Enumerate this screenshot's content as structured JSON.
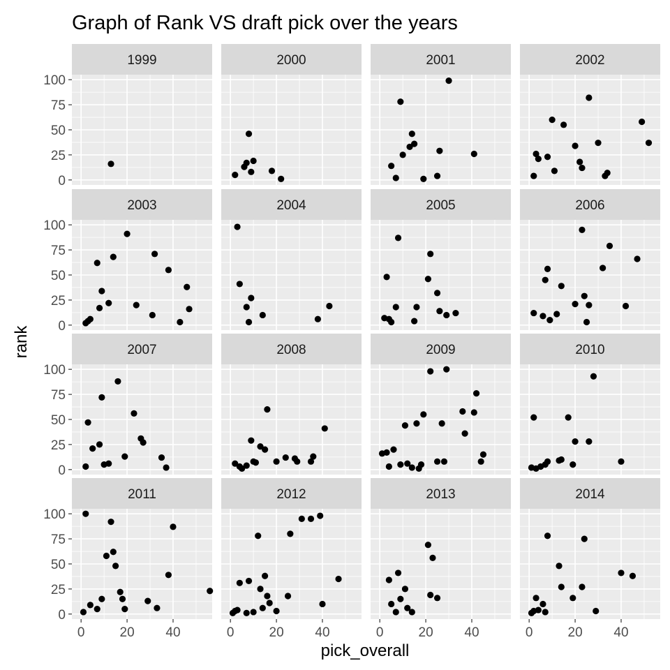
{
  "chart_data": {
    "type": "scatter",
    "title": "Graph of Rank VS draft pick over the years",
    "xlabel": "pick_overall",
    "ylabel": "rank",
    "xlim": [
      -4,
      57
    ],
    "ylim": [
      -5,
      105
    ],
    "x_ticks": [
      0,
      20,
      40
    ],
    "y_ticks": [
      0,
      25,
      50,
      75,
      100
    ],
    "grid": true,
    "facets": [
      {
        "label": "1999",
        "points": [
          [
            13,
            16
          ]
        ]
      },
      {
        "label": "2000",
        "points": [
          [
            2,
            5
          ],
          [
            6,
            13
          ],
          [
            7,
            17
          ],
          [
            8,
            46
          ],
          [
            9,
            8
          ],
          [
            10,
            19
          ],
          [
            18,
            9
          ],
          [
            22,
            1
          ]
        ]
      },
      {
        "label": "2001",
        "points": [
          [
            5,
            14
          ],
          [
            7,
            2
          ],
          [
            9,
            78
          ],
          [
            10,
            25
          ],
          [
            13,
            33
          ],
          [
            14,
            46
          ],
          [
            15,
            36
          ],
          [
            19,
            1
          ],
          [
            25,
            4
          ],
          [
            26,
            29
          ],
          [
            30,
            99
          ],
          [
            41,
            26
          ]
        ]
      },
      {
        "label": "2002",
        "points": [
          [
            2,
            4
          ],
          [
            3,
            26
          ],
          [
            4,
            21
          ],
          [
            8,
            23
          ],
          [
            10,
            60
          ],
          [
            11,
            9
          ],
          [
            15,
            55
          ],
          [
            20,
            34
          ],
          [
            22,
            18
          ],
          [
            23,
            12
          ],
          [
            26,
            82
          ],
          [
            30,
            37
          ],
          [
            33,
            4
          ],
          [
            34,
            7
          ],
          [
            49,
            58
          ],
          [
            52,
            37
          ]
        ]
      },
      {
        "label": "2003",
        "points": [
          [
            2,
            2
          ],
          [
            3,
            4
          ],
          [
            4,
            6
          ],
          [
            7,
            62
          ],
          [
            8,
            17
          ],
          [
            9,
            34
          ],
          [
            12,
            22
          ],
          [
            14,
            68
          ],
          [
            20,
            91
          ],
          [
            24,
            20
          ],
          [
            31,
            10
          ],
          [
            32,
            71
          ],
          [
            38,
            55
          ],
          [
            43,
            3
          ],
          [
            46,
            38
          ],
          [
            47,
            16
          ]
        ]
      },
      {
        "label": "2004",
        "points": [
          [
            3,
            98
          ],
          [
            4,
            41
          ],
          [
            7,
            18
          ],
          [
            8,
            3
          ],
          [
            9,
            27
          ],
          [
            14,
            10
          ],
          [
            38,
            6
          ],
          [
            43,
            19
          ]
        ]
      },
      {
        "label": "2005",
        "points": [
          [
            2,
            7
          ],
          [
            3,
            48
          ],
          [
            4,
            6
          ],
          [
            5,
            3
          ],
          [
            7,
            18
          ],
          [
            8,
            87
          ],
          [
            15,
            4
          ],
          [
            16,
            18
          ],
          [
            21,
            46
          ],
          [
            22,
            71
          ],
          [
            25,
            32
          ],
          [
            26,
            14
          ],
          [
            29,
            10
          ],
          [
            33,
            12
          ]
        ]
      },
      {
        "label": "2006",
        "points": [
          [
            2,
            12
          ],
          [
            6,
            9
          ],
          [
            7,
            45
          ],
          [
            8,
            56
          ],
          [
            9,
            5
          ],
          [
            12,
            11
          ],
          [
            14,
            39
          ],
          [
            20,
            21
          ],
          [
            23,
            95
          ],
          [
            24,
            29
          ],
          [
            25,
            3
          ],
          [
            26,
            20
          ],
          [
            32,
            57
          ],
          [
            35,
            79
          ],
          [
            42,
            19
          ],
          [
            47,
            66
          ]
        ]
      },
      {
        "label": "2007",
        "points": [
          [
            2,
            3
          ],
          [
            3,
            47
          ],
          [
            5,
            21
          ],
          [
            8,
            25
          ],
          [
            9,
            72
          ],
          [
            10,
            5
          ],
          [
            12,
            6
          ],
          [
            16,
            88
          ],
          [
            19,
            13
          ],
          [
            23,
            56
          ],
          [
            26,
            31
          ],
          [
            27,
            27
          ],
          [
            35,
            12
          ],
          [
            37,
            2
          ]
        ]
      },
      {
        "label": "2008",
        "points": [
          [
            2,
            6
          ],
          [
            4,
            3
          ],
          [
            5,
            1
          ],
          [
            7,
            4
          ],
          [
            9,
            29
          ],
          [
            10,
            8
          ],
          [
            11,
            7
          ],
          [
            13,
            23
          ],
          [
            15,
            20
          ],
          [
            16,
            60
          ],
          [
            20,
            8
          ],
          [
            24,
            12
          ],
          [
            28,
            11
          ],
          [
            29,
            8
          ],
          [
            35,
            8
          ],
          [
            36,
            13
          ],
          [
            41,
            41
          ]
        ]
      },
      {
        "label": "2009",
        "points": [
          [
            1,
            16
          ],
          [
            3,
            17
          ],
          [
            4,
            3
          ],
          [
            6,
            20
          ],
          [
            9,
            5
          ],
          [
            11,
            44
          ],
          [
            12,
            6
          ],
          [
            14,
            2
          ],
          [
            16,
            46
          ],
          [
            17,
            1
          ],
          [
            18,
            5
          ],
          [
            19,
            55
          ],
          [
            22,
            98
          ],
          [
            25,
            8
          ],
          [
            27,
            46
          ],
          [
            28,
            8
          ],
          [
            29,
            100
          ],
          [
            36,
            58
          ],
          [
            37,
            36
          ],
          [
            41,
            57
          ],
          [
            42,
            76
          ],
          [
            44,
            8
          ],
          [
            45,
            15
          ]
        ]
      },
      {
        "label": "2010",
        "points": [
          [
            1,
            2
          ],
          [
            2,
            52
          ],
          [
            3,
            1
          ],
          [
            5,
            3
          ],
          [
            7,
            5
          ],
          [
            8,
            8
          ],
          [
            13,
            9
          ],
          [
            14,
            10
          ],
          [
            17,
            52
          ],
          [
            19,
            5
          ],
          [
            20,
            28
          ],
          [
            26,
            28
          ],
          [
            28,
            93
          ],
          [
            40,
            8
          ]
        ]
      },
      {
        "label": "2011",
        "points": [
          [
            1,
            2
          ],
          [
            2,
            100
          ],
          [
            4,
            9
          ],
          [
            7,
            5
          ],
          [
            9,
            15
          ],
          [
            11,
            58
          ],
          [
            13,
            92
          ],
          [
            14,
            62
          ],
          [
            15,
            48
          ],
          [
            17,
            22
          ],
          [
            18,
            15
          ],
          [
            19,
            5
          ],
          [
            29,
            13
          ],
          [
            33,
            6
          ],
          [
            38,
            39
          ],
          [
            40,
            87
          ],
          [
            56,
            23
          ]
        ]
      },
      {
        "label": "2012",
        "points": [
          [
            1,
            1
          ],
          [
            2,
            3
          ],
          [
            3,
            4
          ],
          [
            4,
            31
          ],
          [
            7,
            1
          ],
          [
            8,
            33
          ],
          [
            10,
            2
          ],
          [
            12,
            78
          ],
          [
            13,
            25
          ],
          [
            14,
            6
          ],
          [
            15,
            38
          ],
          [
            16,
            18
          ],
          [
            17,
            11
          ],
          [
            20,
            3
          ],
          [
            25,
            18
          ],
          [
            26,
            80
          ],
          [
            31,
            95
          ],
          [
            35,
            95
          ],
          [
            39,
            98
          ],
          [
            40,
            10
          ],
          [
            47,
            35
          ]
        ]
      },
      {
        "label": "2013",
        "points": [
          [
            4,
            34
          ],
          [
            5,
            10
          ],
          [
            7,
            2
          ],
          [
            8,
            41
          ],
          [
            9,
            15
          ],
          [
            11,
            25
          ],
          [
            12,
            6
          ],
          [
            14,
            2
          ],
          [
            21,
            69
          ],
          [
            22,
            19
          ],
          [
            23,
            56
          ],
          [
            25,
            16
          ]
        ]
      },
      {
        "label": "2014",
        "points": [
          [
            1,
            1
          ],
          [
            2,
            3
          ],
          [
            3,
            16
          ],
          [
            4,
            4
          ],
          [
            6,
            10
          ],
          [
            7,
            2
          ],
          [
            8,
            78
          ],
          [
            13,
            48
          ],
          [
            14,
            27
          ],
          [
            19,
            16
          ],
          [
            23,
            27
          ],
          [
            24,
            75
          ],
          [
            29,
            3
          ],
          [
            40,
            41
          ],
          [
            45,
            38
          ]
        ]
      }
    ]
  }
}
